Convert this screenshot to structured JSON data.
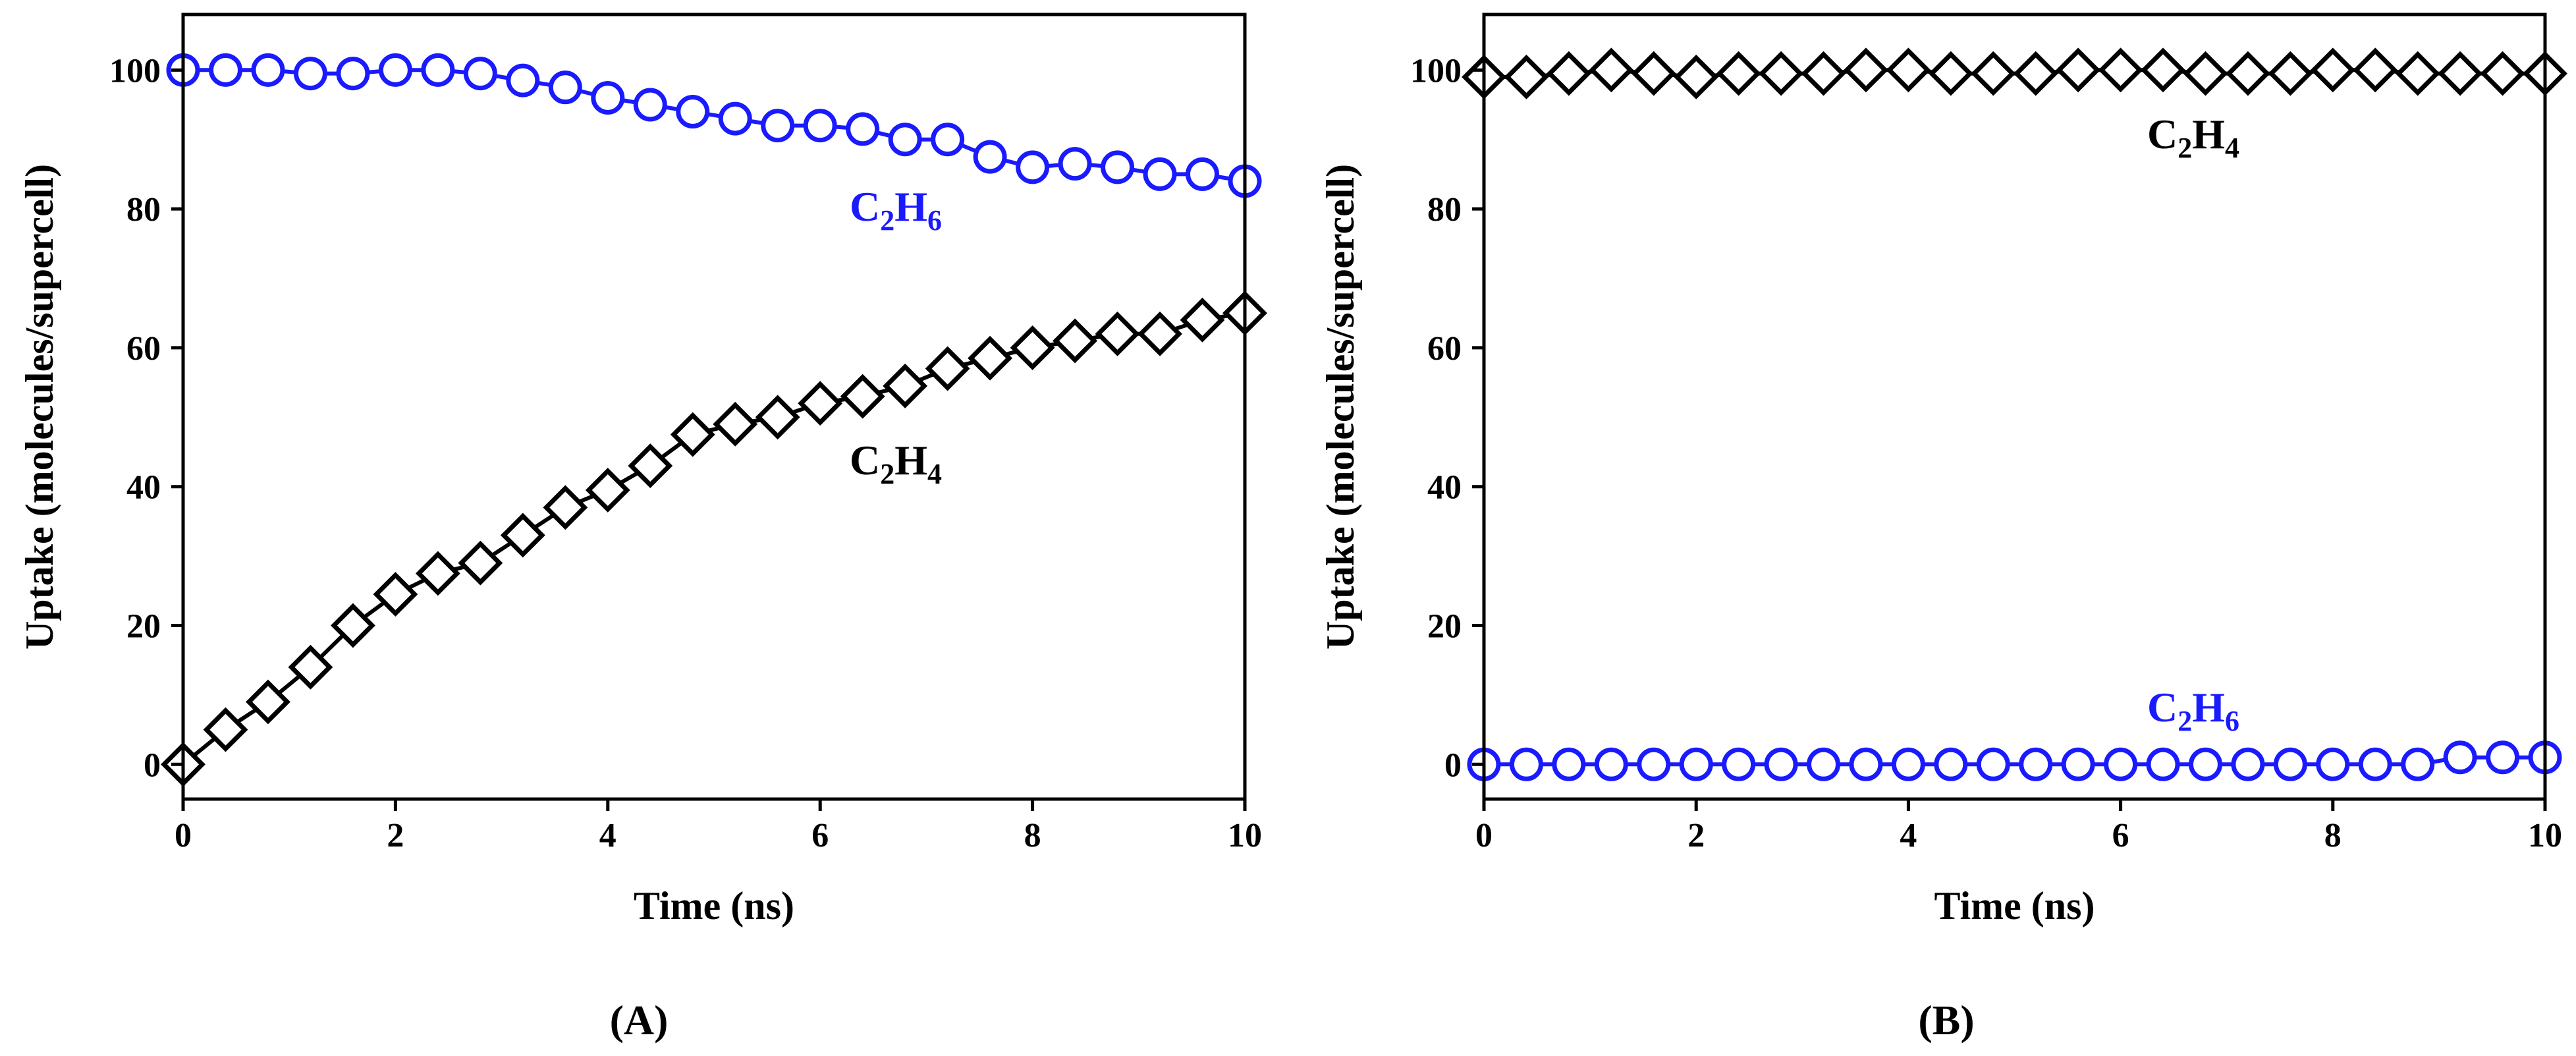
{
  "chart_data": [
    {
      "panel_label": "(A)",
      "type": "line",
      "xlabel": "Time (ns)",
      "ylabel": "Uptake (molecules/supercell)",
      "xlim": [
        0,
        10
      ],
      "ylim": [
        -5,
        108
      ],
      "xticks": [
        0,
        2,
        4,
        6,
        8,
        10
      ],
      "yticks": [
        0,
        20,
        40,
        60,
        80,
        100
      ],
      "grid": false,
      "series": [
        {
          "name": "C2H6",
          "label_main": "C",
          "label_sub1": "2",
          "label_mid": "H",
          "label_sub2": "6",
          "color": "#1a1aff",
          "marker": "circle",
          "x": [
            0,
            0.4,
            0.8,
            1.2,
            1.6,
            2.0,
            2.4,
            2.8,
            3.2,
            3.6,
            4.0,
            4.4,
            4.8,
            5.2,
            5.6,
            6.0,
            6.4,
            6.8,
            7.2,
            7.6,
            8.0,
            8.4,
            8.8,
            9.2,
            9.6,
            10.0
          ],
          "y": [
            100,
            100,
            100,
            99.5,
            99.5,
            100,
            100,
            99.5,
            98.5,
            97.5,
            96,
            95,
            94,
            93,
            92,
            92,
            91.5,
            90,
            90,
            87.5,
            86,
            86.5,
            86,
            85,
            85,
            84
          ]
        },
        {
          "name": "C2H4",
          "label_main": "C",
          "label_sub1": "2",
          "label_mid": "H",
          "label_sub2": "4",
          "color": "#000000",
          "marker": "diamond",
          "x": [
            0,
            0.4,
            0.8,
            1.2,
            1.6,
            2.0,
            2.4,
            2.8,
            3.2,
            3.6,
            4.0,
            4.4,
            4.8,
            5.2,
            5.6,
            6.0,
            6.4,
            6.8,
            7.2,
            7.6,
            8.0,
            8.4,
            8.8,
            9.2,
            9.6,
            10.0
          ],
          "y": [
            0,
            5,
            9,
            14,
            20,
            24.5,
            27.5,
            29,
            33,
            37,
            39.5,
            43,
            47.5,
            49,
            50,
            52,
            53,
            54.5,
            57,
            58.5,
            60,
            61,
            62,
            62,
            64,
            65
          ]
        }
      ]
    },
    {
      "panel_label": "(B)",
      "type": "line",
      "xlabel": "Time (ns)",
      "ylabel": "Uptake (molecules/supercell)",
      "xlim": [
        0,
        10
      ],
      "ylim": [
        -5,
        108
      ],
      "xticks": [
        0,
        2,
        4,
        6,
        8,
        10
      ],
      "yticks": [
        0,
        20,
        40,
        60,
        80,
        100
      ],
      "grid": false,
      "series": [
        {
          "name": "C2H4",
          "label_main": "C",
          "label_sub1": "2",
          "label_mid": "H",
          "label_sub2": "4",
          "color": "#000000",
          "marker": "diamond",
          "x": [
            0,
            0.4,
            0.8,
            1.2,
            1.6,
            2.0,
            2.4,
            2.8,
            3.2,
            3.6,
            4.0,
            4.4,
            4.8,
            5.2,
            5.6,
            6.0,
            6.4,
            6.8,
            7.2,
            7.6,
            8.0,
            8.4,
            8.8,
            9.2,
            9.6,
            10.0
          ],
          "y": [
            99,
            99,
            99.5,
            100,
            99.5,
            99,
            99.5,
            99.5,
            99.5,
            100,
            100,
            99.5,
            99.5,
            99.5,
            100,
            100,
            100,
            99.5,
            99.5,
            99.5,
            100,
            100,
            99.5,
            99.5,
            99.5,
            99.5
          ]
        },
        {
          "name": "C2H6",
          "label_main": "C",
          "label_sub1": "2",
          "label_mid": "H",
          "label_sub2": "6",
          "color": "#1a1aff",
          "marker": "circle",
          "x": [
            0,
            0.4,
            0.8,
            1.2,
            1.6,
            2.0,
            2.4,
            2.8,
            3.2,
            3.6,
            4.0,
            4.4,
            4.8,
            5.2,
            5.6,
            6.0,
            6.4,
            6.8,
            7.2,
            7.6,
            8.0,
            8.4,
            8.8,
            9.2,
            9.6,
            10.0
          ],
          "y": [
            0,
            0,
            0,
            0,
            0,
            0,
            0,
            0,
            0,
            0,
            0,
            0,
            0,
            0,
            0,
            0,
            0,
            0,
            0,
            0,
            0,
            0,
            0,
            1,
            1,
            1
          ]
        }
      ]
    }
  ]
}
